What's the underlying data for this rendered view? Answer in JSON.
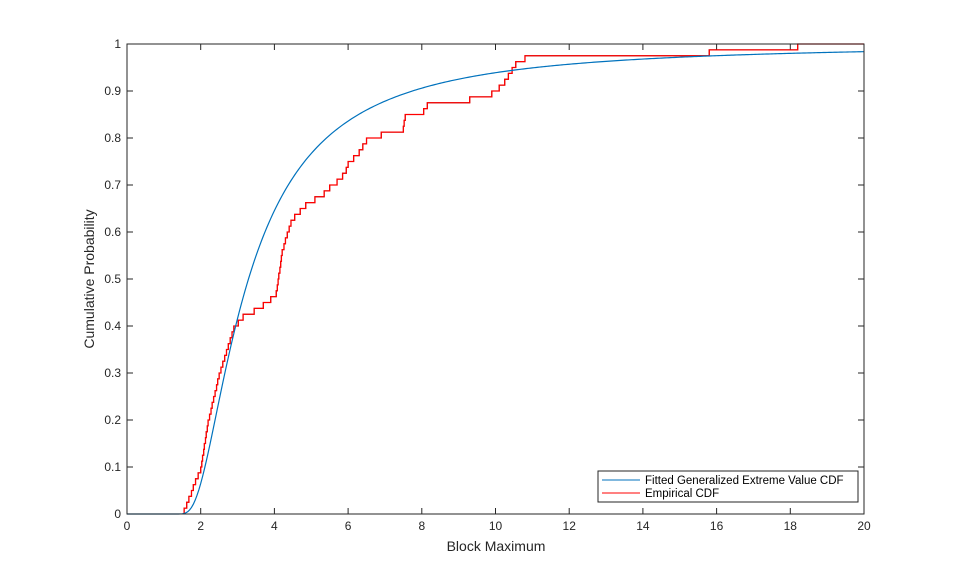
{
  "chart_data": {
    "type": "line",
    "title": "",
    "xlabel": "Block Maximum",
    "ylabel": "Cumulative Probability",
    "xlim": [
      0,
      20
    ],
    "ylim": [
      0,
      1
    ],
    "xticks": [
      "0",
      "2",
      "4",
      "6",
      "8",
      "10",
      "12",
      "14",
      "16",
      "18",
      "20"
    ],
    "yticks": [
      "0",
      "0.1",
      "0.2",
      "0.3",
      "0.4",
      "0.5",
      "0.6",
      "0.7",
      "0.8",
      "0.9",
      "1"
    ],
    "grid": false,
    "legend_placement": "bottom-right",
    "series": [
      {
        "name": "Fitted Generalized Extreme Value CDF",
        "color": "#0072BD",
        "kind": "gev_cdf",
        "params": {
          "k": 0.55,
          "sigma": 1.1,
          "mu": 2.85
        }
      },
      {
        "name": "Empirical CDF",
        "color": "#FF0000",
        "kind": "ecdf_stairs",
        "sorted_samples": [
          1.55,
          1.62,
          1.68,
          1.75,
          1.8,
          1.86,
          1.93,
          2.0,
          2.03,
          2.05,
          2.08,
          2.1,
          2.13,
          2.15,
          2.18,
          2.2,
          2.24,
          2.28,
          2.31,
          2.35,
          2.39,
          2.43,
          2.46,
          2.5,
          2.55,
          2.6,
          2.65,
          2.7,
          2.75,
          2.8,
          2.85,
          2.9,
          3.02,
          3.15,
          3.45,
          3.7,
          3.9,
          4.05,
          4.08,
          4.1,
          4.12,
          4.15,
          4.17,
          4.19,
          4.21,
          4.26,
          4.3,
          4.35,
          4.4,
          4.45,
          4.55,
          4.7,
          4.85,
          5.1,
          5.35,
          5.5,
          5.7,
          5.85,
          5.95,
          6.0,
          6.15,
          6.3,
          6.4,
          6.5,
          6.9,
          7.5,
          7.52,
          7.55,
          8.05,
          8.15,
          9.3,
          9.9,
          10.1,
          10.25,
          10.35,
          10.45,
          10.55,
          10.8,
          15.8,
          18.2
        ]
      }
    ]
  }
}
